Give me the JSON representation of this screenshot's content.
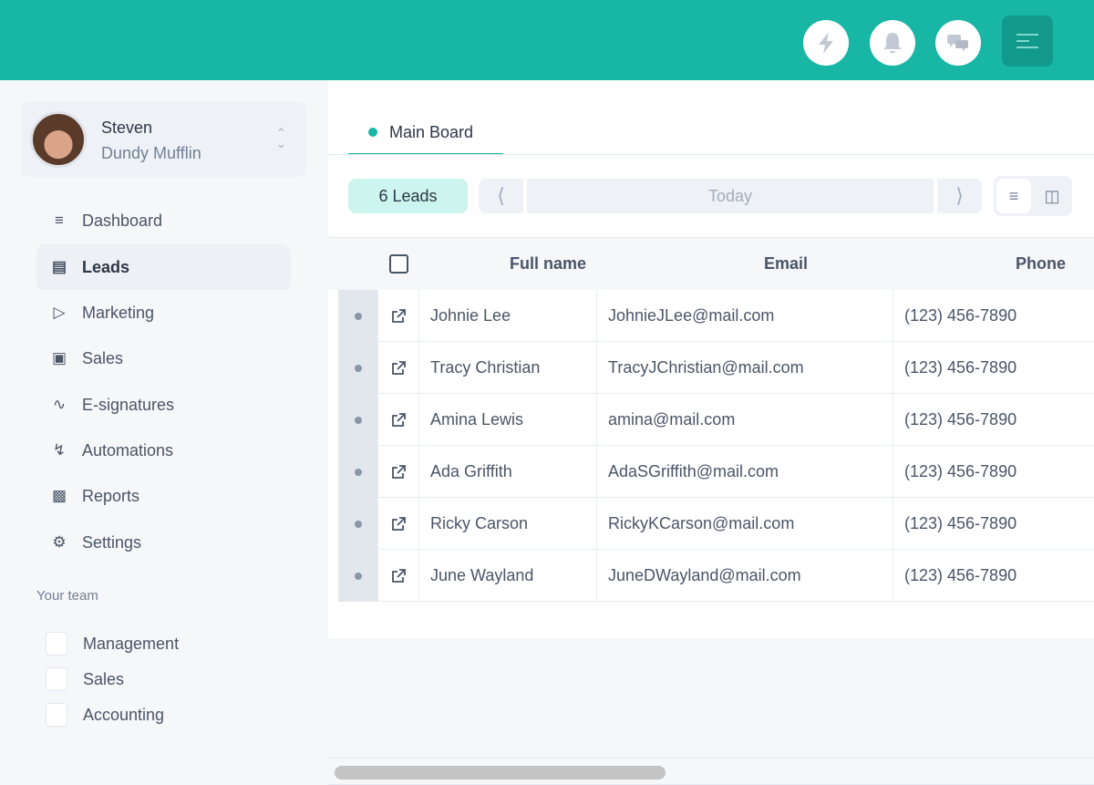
{
  "header": {
    "icons": [
      "lightning-icon",
      "bell-icon",
      "chat-icon",
      "menu-icon"
    ]
  },
  "profile": {
    "name": "Steven",
    "company": "Dundy Mufflin"
  },
  "sidebar": {
    "items": [
      {
        "label": "Dashboard",
        "icon": "list-icon"
      },
      {
        "label": "Leads",
        "icon": "id-card-icon",
        "active": true
      },
      {
        "label": "Marketing",
        "icon": "megaphone-icon"
      },
      {
        "label": "Sales",
        "icon": "money-icon"
      },
      {
        "label": "E-signatures",
        "icon": "signature-icon"
      },
      {
        "label": "Automations",
        "icon": "lightning-icon"
      },
      {
        "label": "Reports",
        "icon": "chart-icon"
      },
      {
        "label": "Settings",
        "icon": "gear-icon"
      }
    ],
    "team_label": "Your team",
    "team": [
      "Management",
      "Sales",
      "Accounting"
    ]
  },
  "main": {
    "tab": "Main Board",
    "leads_count": "6 Leads",
    "date": "Today",
    "columns": [
      "Full name",
      "Email",
      "Phone"
    ],
    "rows": [
      {
        "name": "Johnie Lee",
        "email": "JohnieJLee@mail.com",
        "phone": "(123) 456-7890"
      },
      {
        "name": "Tracy Christian",
        "email": "TracyJChristian@mail.com",
        "phone": "(123) 456-7890"
      },
      {
        "name": "Amina Lewis",
        "email": "amina@mail.com",
        "phone": "(123) 456-7890"
      },
      {
        "name": "Ada Griffith",
        "email": "AdaSGriffith@mail.com",
        "phone": "(123) 456-7890"
      },
      {
        "name": "Ricky Carson",
        "email": "RickyKCarson@mail.com",
        "phone": "(123) 456-7890"
      },
      {
        "name": "June Wayland",
        "email": "JuneDWayland@mail.com",
        "phone": "(123) 456-7890"
      }
    ]
  },
  "colors": {
    "brand": "#17b6a5",
    "badge": "#cdf5ef"
  }
}
